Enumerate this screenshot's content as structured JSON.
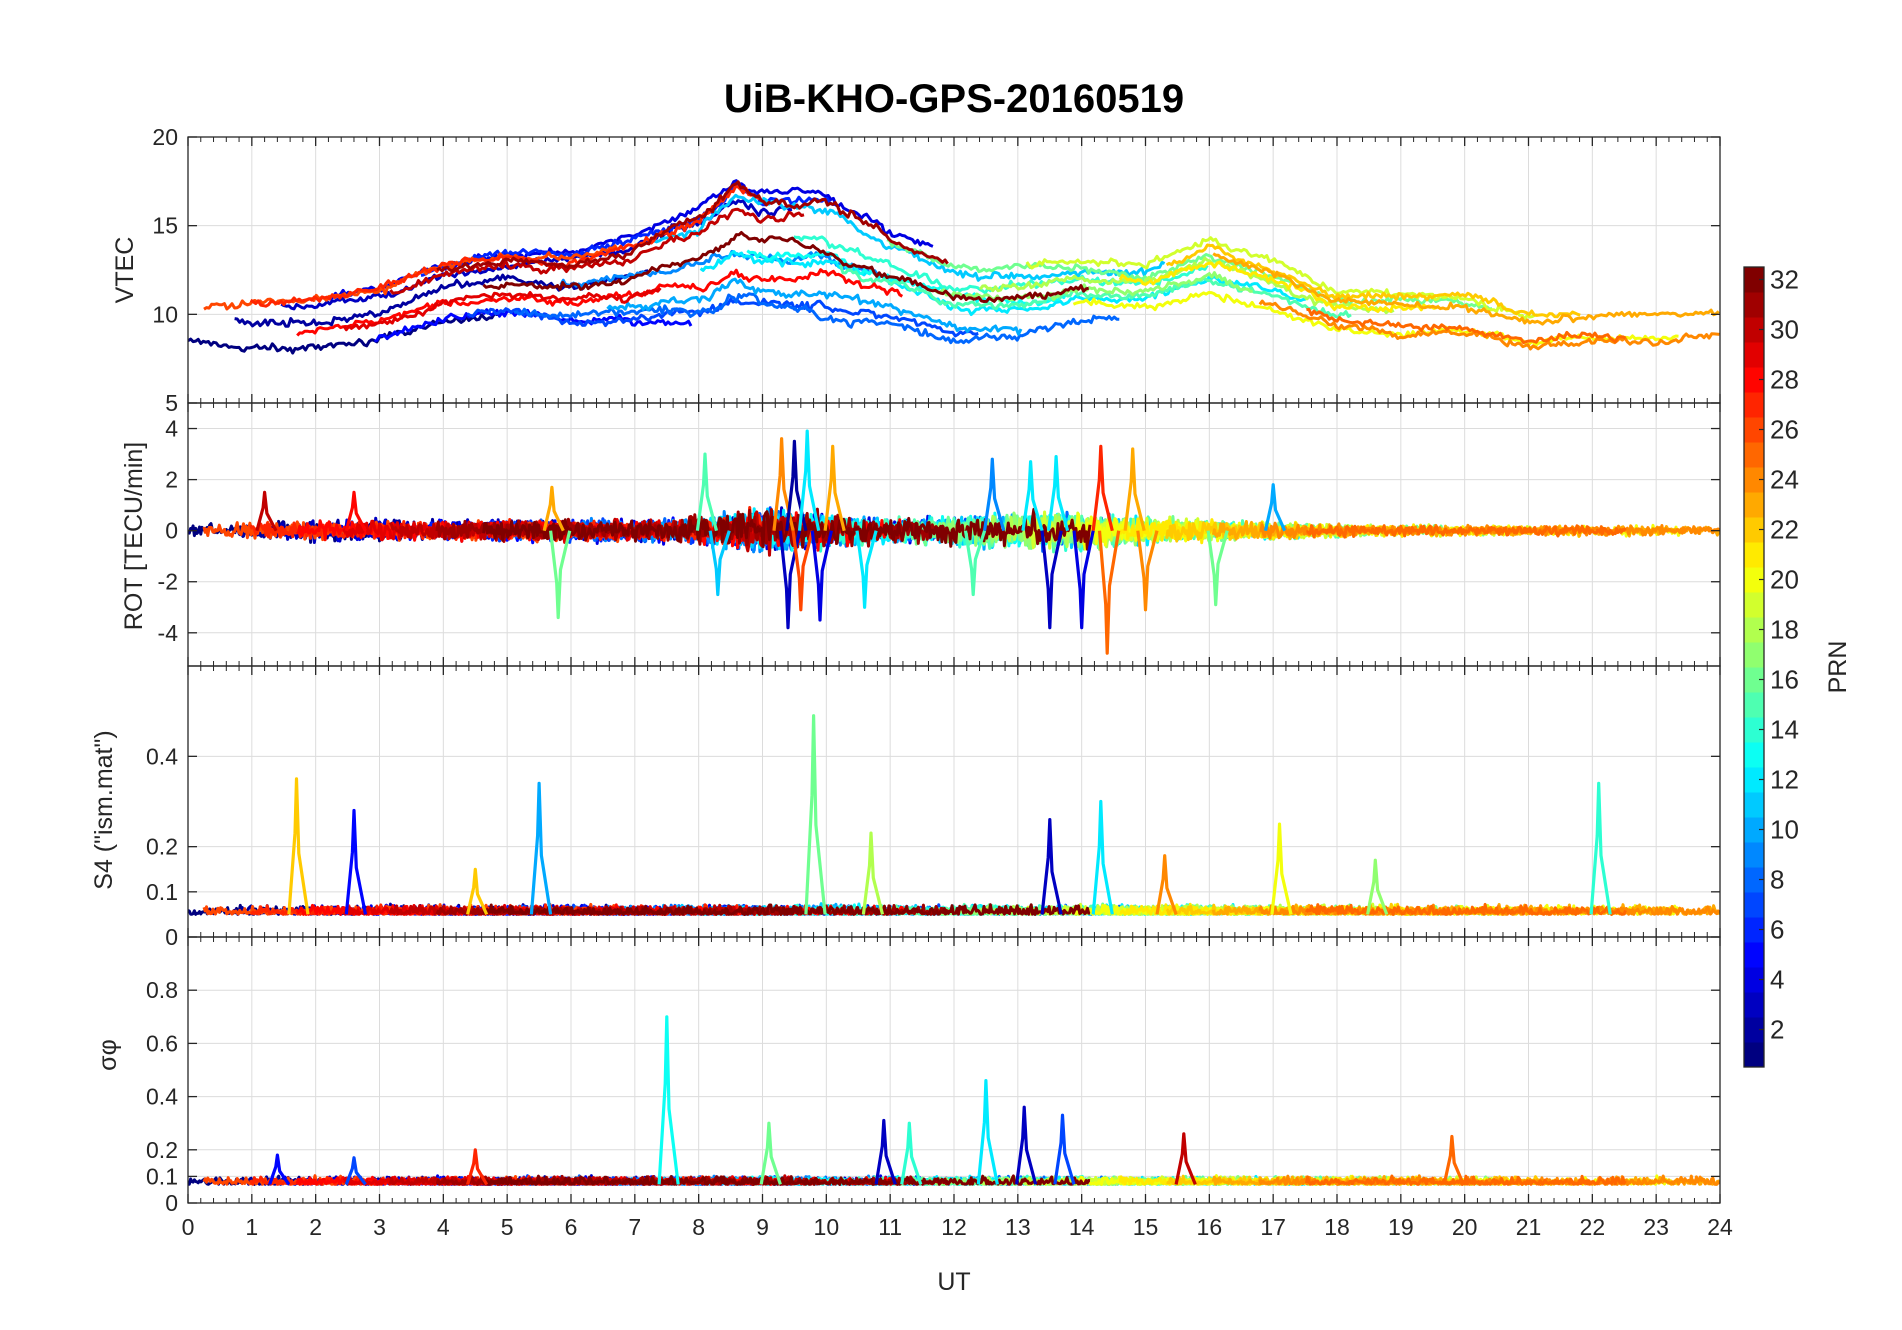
{
  "chart_data": {
    "type": "line",
    "title": "UiB-KHO-GPS-20160519",
    "xlabel": "UT",
    "xlim": [
      0,
      24
    ],
    "x_ticks": [
      "0",
      "1",
      "2",
      "3",
      "4",
      "5",
      "6",
      "7",
      "8",
      "9",
      "10",
      "11",
      "12",
      "13",
      "14",
      "15",
      "16",
      "17",
      "18",
      "19",
      "20",
      "21",
      "22",
      "23",
      "24"
    ],
    "grid": true,
    "colorbar": {
      "label": "PRN",
      "range": [
        1,
        32
      ],
      "colormap": "jet",
      "ticks": [
        "2",
        "4",
        "6",
        "8",
        "10",
        "12",
        "14",
        "16",
        "18",
        "20",
        "22",
        "24",
        "26",
        "28",
        "30",
        "32"
      ],
      "placement": "right"
    },
    "panels": [
      {
        "id": "vtec",
        "ylabel": "VTEC",
        "ylim": [
          5,
          20
        ],
        "yticks": [
          5,
          10,
          15,
          20
        ],
        "ytick_labels": [
          "5",
          "10",
          "15",
          "20"
        ],
        "envelope": {
          "x": [
            0,
            1,
            2,
            3,
            4,
            5,
            6,
            7,
            8,
            8.6,
            9,
            10,
            11,
            12,
            13,
            14,
            15,
            16,
            17,
            18,
            19,
            20,
            21,
            22,
            23,
            24
          ],
          "ymin": [
            8.5,
            8,
            8,
            8.5,
            9.5,
            10,
            9.5,
            9.5,
            9.5,
            10,
            10,
            9.5,
            9.5,
            8.5,
            8.5,
            9.5,
            9.5,
            10,
            9.5,
            8.5,
            8,
            8,
            7.5,
            8,
            8,
            8.5
          ],
          "ymax": [
            10.5,
            11,
            11,
            11.5,
            13,
            13.5,
            13.5,
            14.5,
            16,
            17.8,
            17,
            17.5,
            15,
            13.5,
            13.5,
            13.5,
            13,
            14.5,
            13,
            11.5,
            11.5,
            11.5,
            10.5,
            10.5,
            10.5,
            10.5
          ]
        },
        "series_count": 32,
        "noise": 0.25
      },
      {
        "id": "rot",
        "ylabel": "ROT [TECU/min]",
        "ylim": [
          -5.3,
          5
        ],
        "yticks": [
          -4,
          -2,
          0,
          2,
          4
        ],
        "ytick_labels": [
          "-4",
          "-2",
          "0",
          "2",
          "4"
        ],
        "baseline": 0,
        "activity": {
          "x": [
            0,
            2,
            4,
            6,
            7,
            8,
            9,
            10,
            11,
            12,
            13,
            14,
            15,
            16,
            17,
            18,
            20,
            22,
            24
          ],
          "amp": [
            0.35,
            0.55,
            0.5,
            0.55,
            0.5,
            0.7,
            1.1,
            0.9,
            0.6,
            0.7,
            0.9,
            0.9,
            0.7,
            0.5,
            0.45,
            0.3,
            0.25,
            0.25,
            0.25
          ]
        },
        "spikes": [
          {
            "x": 1.2,
            "y": 1.5,
            "prn": 30
          },
          {
            "x": 2.6,
            "y": 1.5,
            "prn": 28
          },
          {
            "x": 5.7,
            "y": 1.7,
            "prn": 23
          },
          {
            "x": 5.8,
            "y": -3.4,
            "prn": 16
          },
          {
            "x": 8.1,
            "y": 3.0,
            "prn": 15
          },
          {
            "x": 8.3,
            "y": -2.5,
            "prn": 11
          },
          {
            "x": 9.3,
            "y": 3.6,
            "prn": 24
          },
          {
            "x": 9.4,
            "y": -3.8,
            "prn": 3
          },
          {
            "x": 9.5,
            "y": 3.5,
            "prn": 2
          },
          {
            "x": 9.6,
            "y": -3.1,
            "prn": 26
          },
          {
            "x": 9.7,
            "y": 3.9,
            "prn": 12
          },
          {
            "x": 9.9,
            "y": -3.5,
            "prn": 4
          },
          {
            "x": 10.1,
            "y": 3.3,
            "prn": 23
          },
          {
            "x": 10.6,
            "y": -3.0,
            "prn": 12
          },
          {
            "x": 12.3,
            "y": -2.5,
            "prn": 15
          },
          {
            "x": 12.6,
            "y": 2.8,
            "prn": 9
          },
          {
            "x": 13.2,
            "y": 2.7,
            "prn": 12
          },
          {
            "x": 13.5,
            "y": -3.8,
            "prn": 3
          },
          {
            "x": 13.6,
            "y": 2.9,
            "prn": 12
          },
          {
            "x": 14.0,
            "y": -3.8,
            "prn": 4
          },
          {
            "x": 14.3,
            "y": 3.3,
            "prn": 27
          },
          {
            "x": 14.4,
            "y": -4.8,
            "prn": 25
          },
          {
            "x": 14.8,
            "y": 3.2,
            "prn": 23
          },
          {
            "x": 15.0,
            "y": -3.1,
            "prn": 24
          },
          {
            "x": 16.1,
            "y": -2.9,
            "prn": 16
          },
          {
            "x": 17.0,
            "y": 1.8,
            "prn": 10
          }
        ],
        "series_count": 32
      },
      {
        "id": "s4",
        "ylabel": "S4 (\"ism.mat\")",
        "ylim": [
          0,
          0.6
        ],
        "yticks": [
          0,
          0.1,
          0.2,
          0.4
        ],
        "ytick_labels": [
          "0",
          "0.1",
          "0.2",
          "0.4"
        ],
        "baseline": 0.05,
        "spikes": [
          {
            "x": 1.7,
            "y": 0.35,
            "prn": 22
          },
          {
            "x": 2.6,
            "y": 0.28,
            "prn": 5
          },
          {
            "x": 4.5,
            "y": 0.15,
            "prn": 22
          },
          {
            "x": 5.5,
            "y": 0.34,
            "prn": 10
          },
          {
            "x": 9.8,
            "y": 0.49,
            "prn": 16
          },
          {
            "x": 10.7,
            "y": 0.23,
            "prn": 18
          },
          {
            "x": 13.5,
            "y": 0.26,
            "prn": 3
          },
          {
            "x": 14.3,
            "y": 0.3,
            "prn": 12
          },
          {
            "x": 15.3,
            "y": 0.18,
            "prn": 24
          },
          {
            "x": 17.1,
            "y": 0.25,
            "prn": 20
          },
          {
            "x": 18.6,
            "y": 0.17,
            "prn": 17
          },
          {
            "x": 22.1,
            "y": 0.34,
            "prn": 14
          }
        ],
        "series_count": 32
      },
      {
        "id": "sigma",
        "ylabel": "σφ",
        "ylim": [
          0,
          1
        ],
        "yticks": [
          0,
          0.1,
          0.2,
          0.4,
          0.6,
          0.8
        ],
        "ytick_labels": [
          "0",
          "0.1",
          "0.2",
          "0.4",
          "0.6",
          "0.8"
        ],
        "baseline": 0.07,
        "spikes": [
          {
            "x": 1.4,
            "y": 0.18,
            "prn": 5
          },
          {
            "x": 2.6,
            "y": 0.17,
            "prn": 7
          },
          {
            "x": 4.5,
            "y": 0.2,
            "prn": 27
          },
          {
            "x": 7.5,
            "y": 0.7,
            "prn": 13
          },
          {
            "x": 9.1,
            "y": 0.3,
            "prn": 16
          },
          {
            "x": 10.9,
            "y": 0.31,
            "prn": 3
          },
          {
            "x": 11.3,
            "y": 0.3,
            "prn": 14
          },
          {
            "x": 12.5,
            "y": 0.46,
            "prn": 12
          },
          {
            "x": 13.1,
            "y": 0.36,
            "prn": 3
          },
          {
            "x": 13.7,
            "y": 0.33,
            "prn": 7
          },
          {
            "x": 15.6,
            "y": 0.26,
            "prn": 30
          },
          {
            "x": 19.8,
            "y": 0.25,
            "prn": 25
          }
        ],
        "series_count": 32
      }
    ]
  }
}
